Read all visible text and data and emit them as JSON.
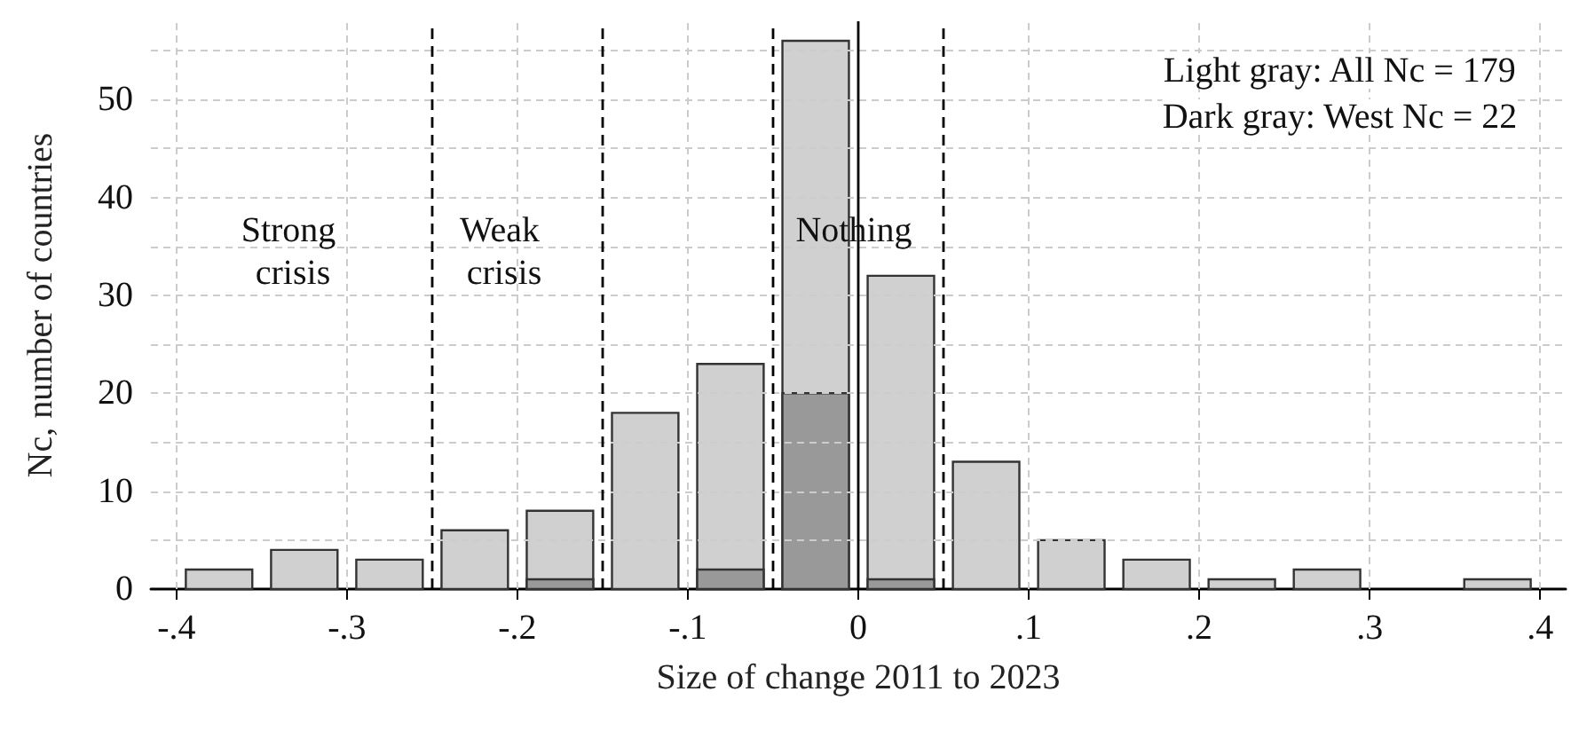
{
  "chart_data": {
    "type": "histogram",
    "xlabel": "Size of change 2011 to 2023",
    "ylabel": "Nc, number of countries",
    "bins": [
      -0.4,
      -0.35,
      -0.3,
      -0.25,
      -0.2,
      -0.15,
      -0.1,
      -0.05,
      0,
      0.05,
      0.1,
      0.15,
      0.2,
      0.25,
      0.3,
      0.35,
      0.4
    ],
    "series": [
      {
        "color": "#d0d0d0",
        "values": [
          2,
          4,
          3,
          6,
          8,
          18,
          23,
          56,
          32,
          13,
          5,
          3,
          1,
          2,
          0,
          1
        ]
      },
      {
        "color": "#999999",
        "values": [
          0,
          0,
          0,
          0,
          1,
          0,
          2,
          20,
          1,
          0,
          0,
          0,
          0,
          0,
          0,
          0
        ]
      }
    ],
    "xlim": [
      -0.415,
      0.415
    ],
    "xticks": [
      {
        "value": -0.4,
        "label": "-.4"
      },
      {
        "value": -0.3,
        "label": "-.3"
      },
      {
        "value": -0.2,
        "label": "-.2"
      },
      {
        "value": -0.1,
        "label": "-.1"
      },
      0,
      {
        "value": 0.1,
        "label": ".1"
      },
      {
        "value": 0.2,
        "label": ".2"
      },
      {
        "value": 0.3,
        "label": ".3"
      },
      {
        "value": 0.4,
        "label": ".4"
      }
    ],
    "ylim": [
      0,
      58
    ],
    "yticks": [
      0,
      {
        "value": 5,
        "label": null
      },
      10,
      {
        "value": 15,
        "label": null
      },
      20,
      {
        "value": 25,
        "label": null
      },
      30,
      {
        "value": 35,
        "label": null
      },
      40,
      {
        "value": 45,
        "label": null
      },
      50,
      {
        "value": 55,
        "label": null
      }
    ],
    "grid": true,
    "ref_lines": [
      {
        "axis": "x",
        "value": -0.25,
        "line_style": "dashed",
        "color": "#000000"
      },
      {
        "axis": "x",
        "value": -0.15,
        "line_style": "dashed",
        "color": "#000000"
      },
      {
        "axis": "x",
        "value": -0.05,
        "line_style": "dashed",
        "color": "#000000"
      },
      {
        "axis": "x",
        "value": 0,
        "line_style": "solid",
        "color": "#000000"
      },
      {
        "axis": "x",
        "value": 0.05,
        "line_style": "dashed",
        "color": "#000000"
      }
    ],
    "annotations": [
      "Strong crisis",
      "Weak crisis",
      "Nothing",
      "Light gray: All Nc = 179",
      "Dark gray: West Nc = 22"
    ]
  }
}
